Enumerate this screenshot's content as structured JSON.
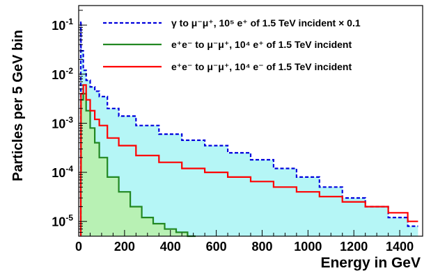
{
  "chart_data": {
    "type": "line",
    "title": "",
    "xlabel": "Energy in GeV",
    "ylabel": "Particles per 5 GeV bin",
    "xlim": [
      0,
      1500
    ],
    "ylim": [
      5e-06,
      0.25
    ],
    "log_y": true,
    "grid": false,
    "x_ticks": [
      0,
      200,
      400,
      600,
      800,
      1000,
      1200,
      1400
    ],
    "x_tick_labels": [
      "0",
      "200",
      "400",
      "600",
      "800",
      "1000",
      "1200",
      "1400"
    ],
    "y_ticks": [
      1e-05,
      0.0001,
      0.001,
      0.01,
      0.1
    ],
    "y_tick_labels": [
      {
        "base": "10",
        "exp": "-5"
      },
      {
        "base": "10",
        "exp": "-4"
      },
      {
        "base": "10",
        "exp": "-3"
      },
      {
        "base": "10",
        "exp": "-2"
      },
      {
        "base": "10",
        "exp": "-1"
      }
    ],
    "legend_position": "top-right",
    "series": [
      {
        "legend": "γ to μ⁻μ⁺, 10⁵ e⁺ of 1.5 TeV incident × 0.1",
        "color": "#0000dd",
        "line_style": "dashed",
        "fill": "#a8f4f4",
        "x": [
          5,
          15,
          25,
          40,
          60,
          80,
          100,
          150,
          200,
          300,
          400,
          500,
          600,
          700,
          800,
          900,
          1000,
          1100,
          1200,
          1300,
          1400,
          1470
        ],
        "y": [
          0.12,
          0.03,
          0.012,
          0.0075,
          0.0055,
          0.0045,
          0.0035,
          0.002,
          0.0014,
          0.0009,
          0.0006,
          0.00045,
          0.00035,
          0.00025,
          0.00018,
          0.00012,
          8e-05,
          5e-05,
          3e-05,
          2e-05,
          1.2e-05,
          8e-06
        ]
      },
      {
        "legend": "e⁺e⁻ to μ⁻μ⁺, 10⁴ e⁺ of 1.5 TeV incident",
        "color": "#228822",
        "line_style": "solid",
        "fill": "#b8f0a8",
        "x": [
          5,
          15,
          25,
          40,
          60,
          80,
          100,
          150,
          200,
          250,
          300,
          350,
          400,
          450,
          500
        ],
        "y": [
          0.0001,
          0.003,
          0.004,
          0.0018,
          0.0008,
          0.0004,
          0.0002,
          8e-05,
          4e-05,
          2e-05,
          1.2e-05,
          9e-06,
          7e-06,
          6e-06,
          5e-06
        ]
      },
      {
        "legend": "e⁺e⁻ to μ⁻μ⁺, 10⁴ e⁻ of 1.5 TeV incident",
        "color": "#ff0000",
        "line_style": "solid",
        "fill": "",
        "x": [
          5,
          15,
          25,
          40,
          60,
          80,
          100,
          150,
          200,
          300,
          400,
          500,
          600,
          700,
          800,
          900,
          1000,
          1100,
          1200,
          1300,
          1400,
          1470
        ],
        "y": [
          0.0001,
          0.004,
          0.006,
          0.003,
          0.0018,
          0.0012,
          0.0009,
          0.0005,
          0.00035,
          0.00022,
          0.00016,
          0.00012,
          0.0001,
          8e-05,
          6.5e-05,
          5e-05,
          4e-05,
          3.2e-05,
          2.5e-05,
          2e-05,
          1.5e-05,
          1e-05
        ]
      }
    ]
  }
}
